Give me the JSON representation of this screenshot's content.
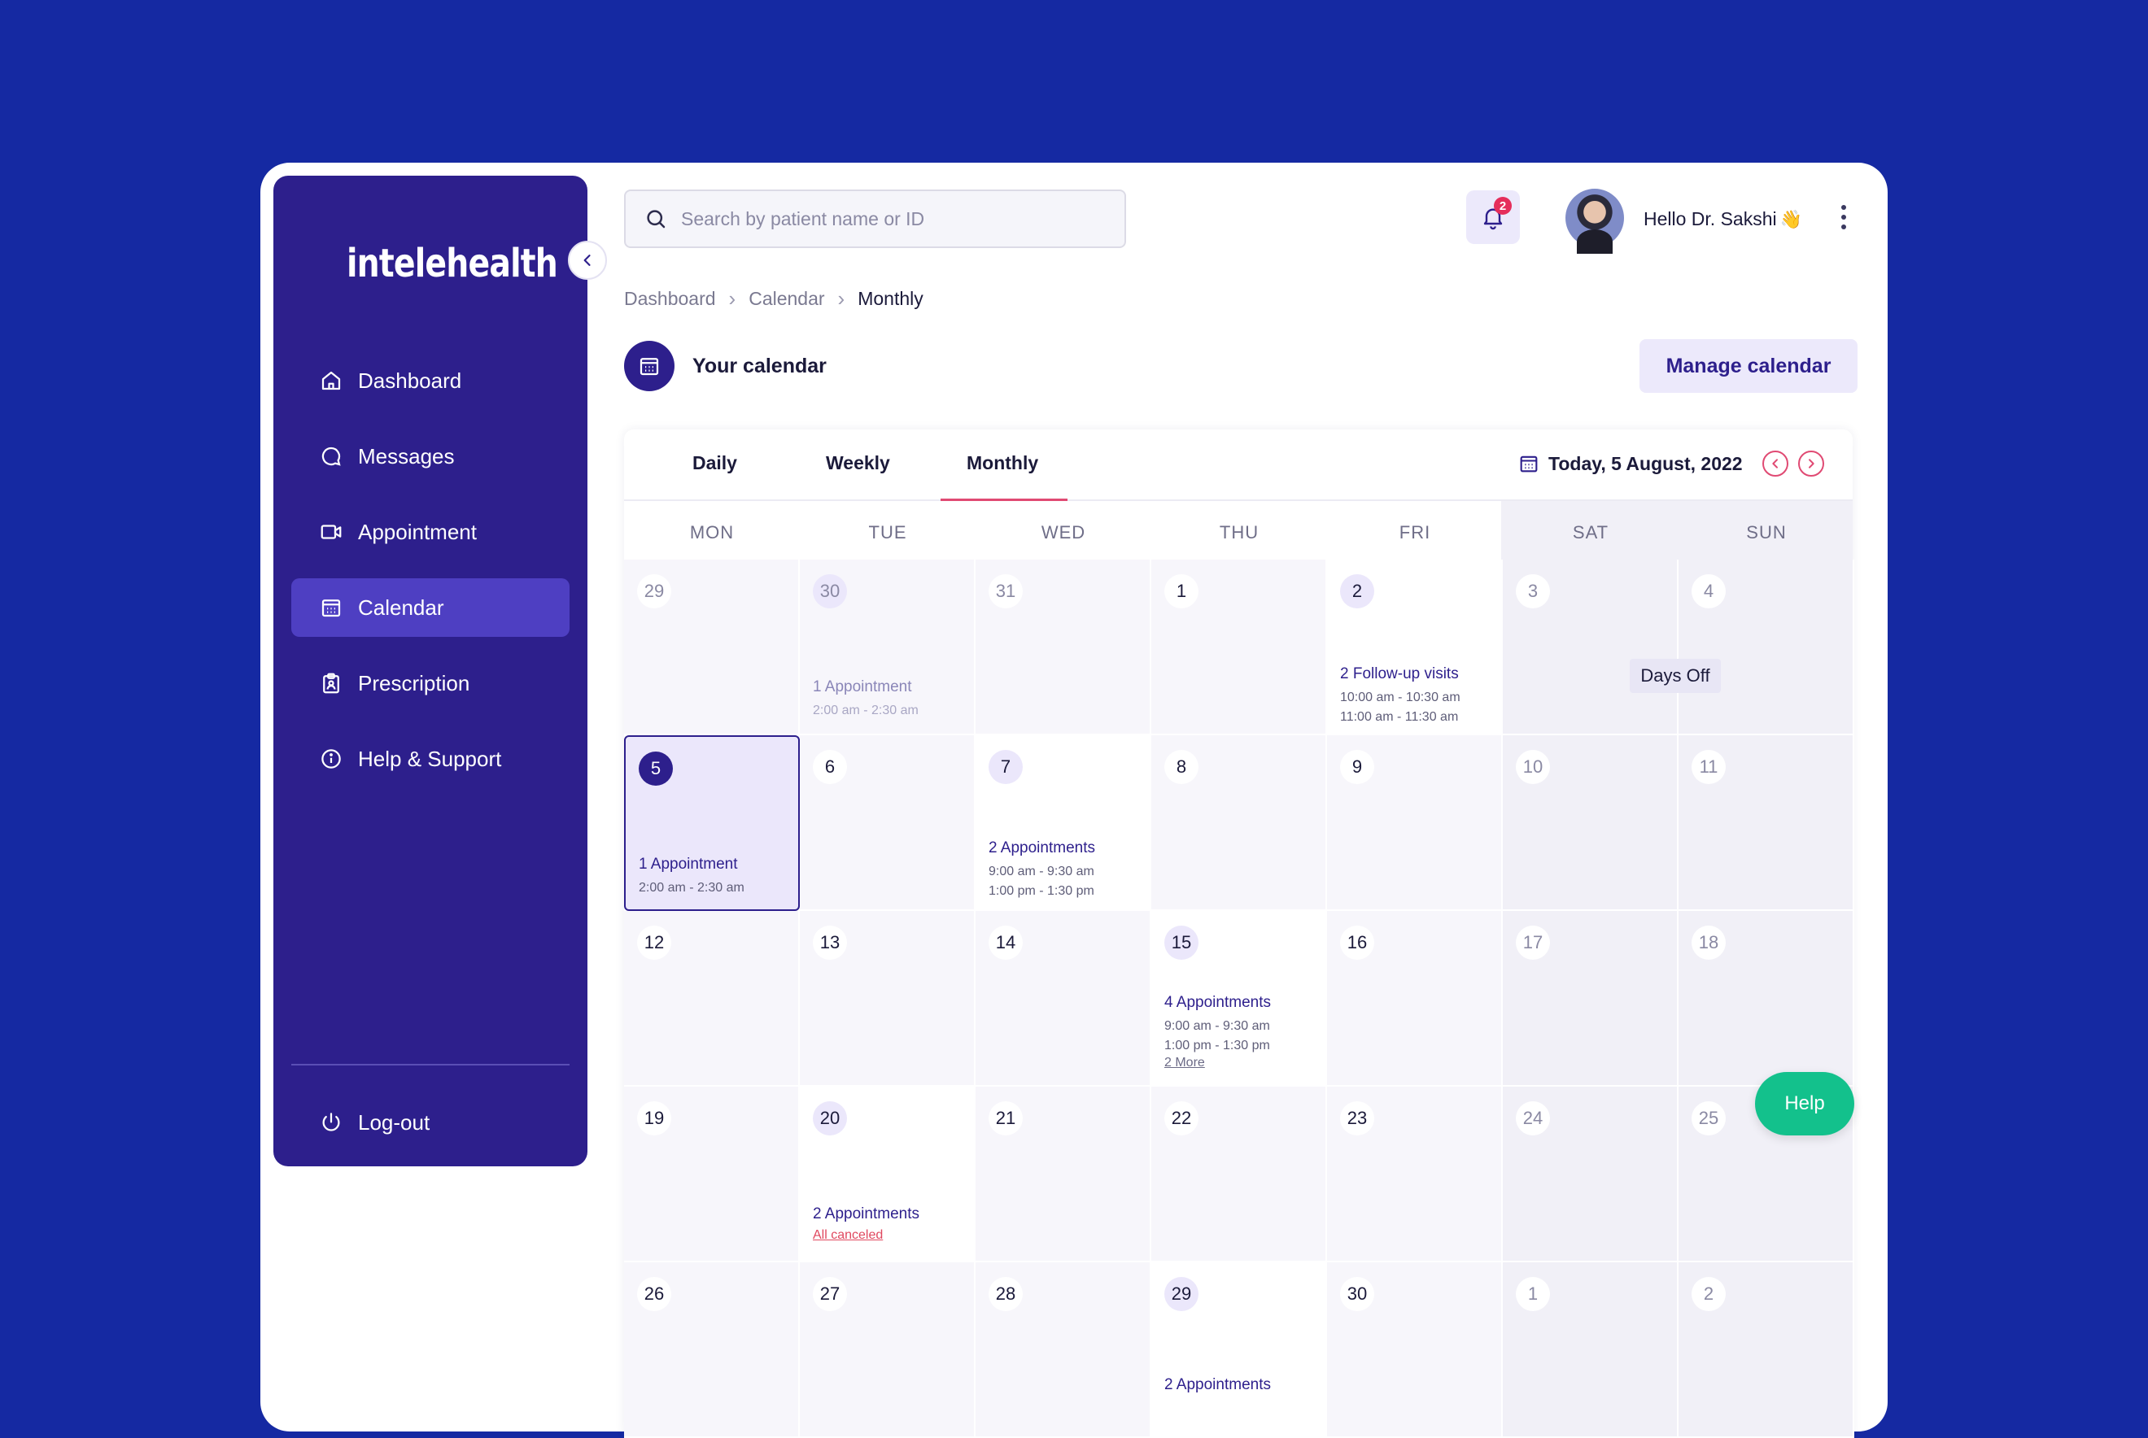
{
  "brand": {
    "logo_text": "intelehealth"
  },
  "sidebar": {
    "items": [
      {
        "label": "Dashboard",
        "icon": "home-icon"
      },
      {
        "label": "Messages",
        "icon": "message-icon"
      },
      {
        "label": "Appointment",
        "icon": "video-icon"
      },
      {
        "label": "Calendar",
        "icon": "calendar-icon",
        "active": true
      },
      {
        "label": "Prescription",
        "icon": "clipboard-icon"
      },
      {
        "label": "Help & Support",
        "icon": "info-icon"
      }
    ],
    "logout_label": "Log-out"
  },
  "search": {
    "placeholder": "Search by patient name or ID",
    "value": ""
  },
  "header": {
    "notification_count": "2",
    "greeting": "Hello Dr. Sakshi",
    "greeting_emoji": "👋"
  },
  "breadcrumb": [
    "Dashboard",
    "Calendar",
    "Monthly"
  ],
  "calendar": {
    "title": "Your calendar",
    "manage_label": "Manage calendar",
    "tabs": [
      "Daily",
      "Weekly",
      "Monthly"
    ],
    "active_tab": "Monthly",
    "today_label": "Today, 5 August, 2022",
    "weekdays": [
      "MON",
      "TUE",
      "WED",
      "THU",
      "FRI",
      "SAT",
      "SUN"
    ],
    "days_off_label": "Days Off",
    "help_label": "Help",
    "weeks": [
      [
        "29",
        "30",
        "31",
        "1",
        "2",
        "3",
        "4"
      ],
      [
        "5",
        "6",
        "7",
        "8",
        "9",
        "10",
        "11"
      ],
      [
        "12",
        "13",
        "14",
        "15",
        "16",
        "17",
        "18"
      ],
      [
        "19",
        "20",
        "21",
        "22",
        "23",
        "24",
        "25"
      ],
      [
        "26",
        "27",
        "28",
        "29",
        "30",
        "1",
        "2"
      ]
    ],
    "events": {
      "w0d1": {
        "title": "1 Appointment",
        "times": [
          "2:00 am - 2:30 am"
        ]
      },
      "w0d4": {
        "title": "2 Follow-up visits",
        "times": [
          "10:00 am - 10:30 am",
          "11:00 am - 11:30 am"
        ]
      },
      "w1d0": {
        "title": "1 Appointment",
        "times": [
          "2:00 am - 2:30 am"
        ]
      },
      "w1d2": {
        "title": "2 Appointments",
        "times": [
          "9:00 am - 9:30 am",
          "1:00 pm - 1:30 pm"
        ]
      },
      "w2d3": {
        "title": "4 Appointments",
        "times": [
          "9:00 am - 9:30 am",
          "1:00 pm - 1:30 pm"
        ],
        "more": "2 More"
      },
      "w3d1": {
        "title": "2 Appointments",
        "status": "All canceled"
      },
      "w4d3": {
        "title": "2 Appointments"
      }
    }
  },
  "colors": {
    "background": "#1529a2",
    "sidebar": "#2d1f8c",
    "active_nav": "#4e3fc2",
    "accent_pink": "#e04a73",
    "help_green": "#13c18c",
    "canceled_red": "#e0485f"
  }
}
